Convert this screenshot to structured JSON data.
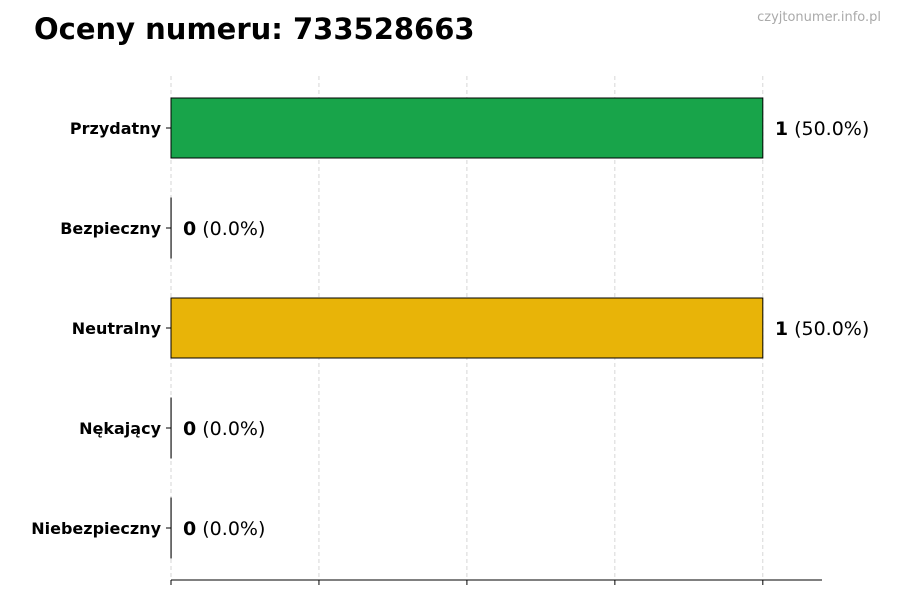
{
  "watermark": "czyjtonumer.info.pl",
  "chart_data": {
    "type": "bar",
    "orientation": "horizontal",
    "title": "Oceny numeru: 733528663",
    "xlabel": "",
    "ylabel": "",
    "categories": [
      "Przydatny",
      "Bezpieczny",
      "Neutralny",
      "Nękający",
      "Niebezpieczny"
    ],
    "values": [
      1,
      0,
      1,
      0,
      0
    ],
    "percent_labels": [
      "(50.0%)",
      "(0.0%)",
      "(50.0%)",
      "(0.0%)",
      "(0.0%)"
    ],
    "colors": [
      "#18a44a",
      "#1f77b4",
      "#e8b408",
      "#e06020",
      "#d62728"
    ],
    "xlim": [
      0,
      1.1
    ],
    "x_gridlines": [
      0,
      0.25,
      0.5,
      0.75,
      1
    ],
    "x_tick_labels_shown": false,
    "grid": "x, dashed",
    "legend": "none"
  }
}
